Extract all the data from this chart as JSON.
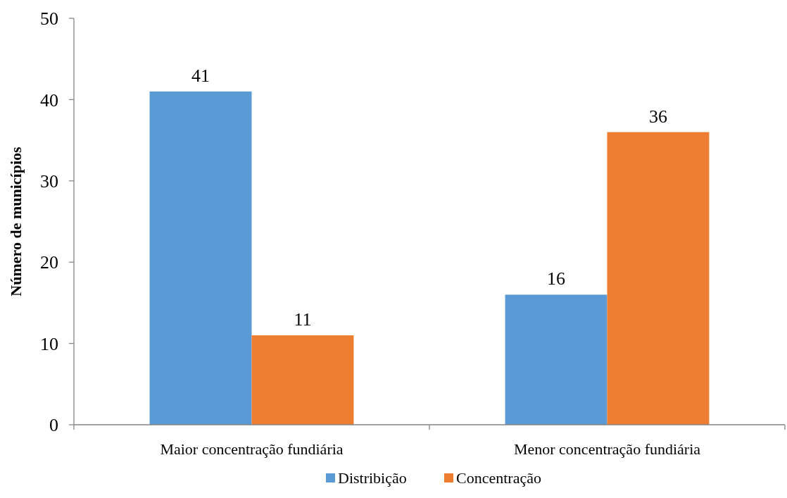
{
  "chart_data": {
    "type": "bar",
    "ylabel": "Número de municípios",
    "categories": [
      "Maior concentração fundiária",
      "Menor concentração fundiária"
    ],
    "series": [
      {
        "name": "Distribição",
        "color": "#5b9bd5",
        "values": [
          41,
          16
        ]
      },
      {
        "name": "Concentração",
        "color": "#ed7d31",
        "values": [
          11,
          36
        ]
      }
    ],
    "ylim": [
      0,
      50
    ],
    "yticks": [
      0,
      10,
      20,
      30,
      40,
      50
    ],
    "data_labels": true,
    "legend": "bottom",
    "grid": false
  }
}
